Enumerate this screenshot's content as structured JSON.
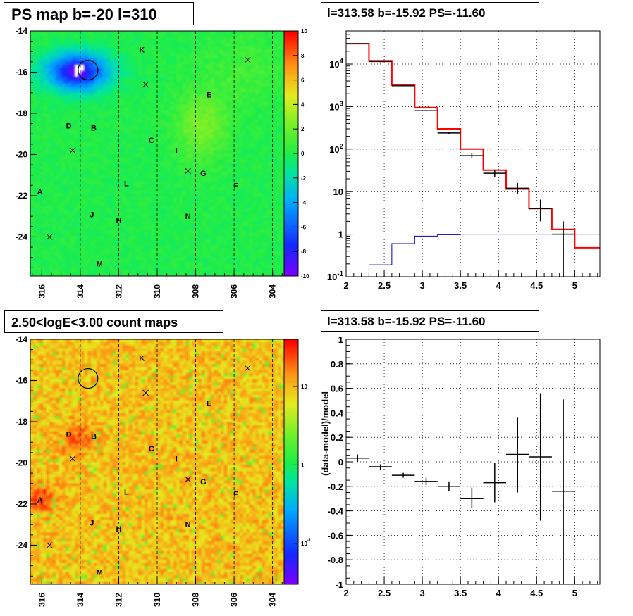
{
  "panels": {
    "tl_title": "PS map b=-20 l=310",
    "tr_title": "l=313.58 b=-15.92 PS=-11.60",
    "bl_title": "2.50<logE<3.00 count maps",
    "br_title": "l=313.58 b=-15.92 PS=-11.60"
  },
  "colors": {
    "model": "#ff0000",
    "background_model": "#0000cc",
    "data": "#000000",
    "map_green": "#22ee44",
    "map_orange": "#f4a020"
  },
  "chart_data": [
    {
      "type": "heatmap",
      "title": "PS map b=-20 l=310",
      "x_ticks": [
        "316",
        "314",
        "312",
        "310",
        "308",
        "306",
        "304"
      ],
      "y_ticks": [
        "-14",
        "-16",
        "-18",
        "-20",
        "-22",
        "-24"
      ],
      "xlim": [
        316.6,
        303.4
      ],
      "ylim": [
        -25.9,
        -14
      ],
      "colorbar_ticks": [
        "10",
        "8",
        "6",
        "4",
        "2",
        "0",
        "-2",
        "-4",
        "-6",
        "-8",
        "-10"
      ],
      "zlim": [
        -10,
        10
      ],
      "sources": [
        {
          "label": "K",
          "l": 310.8,
          "b": -14.9
        },
        {
          "label": "E",
          "l": 307.3,
          "b": -17.1
        },
        {
          "label": "D",
          "l": 314.6,
          "b": -18.6
        },
        {
          "label": "B",
          "l": 313.3,
          "b": -18.7
        },
        {
          "label": "C",
          "l": 310.3,
          "b": -19.3
        },
        {
          "label": "I",
          "l": 309.0,
          "b": -19.8
        },
        {
          "label": "G",
          "l": 307.6,
          "b": -20.9
        },
        {
          "label": "L",
          "l": 311.6,
          "b": -21.4
        },
        {
          "label": "F",
          "l": 305.9,
          "b": -21.5
        },
        {
          "label": "A",
          "l": 316.1,
          "b": -21.8
        },
        {
          "label": "J",
          "l": 313.4,
          "b": -22.9
        },
        {
          "label": "H",
          "l": 312.0,
          "b": -23.2
        },
        {
          "label": "N",
          "l": 308.4,
          "b": -23.0
        },
        {
          "label": "M",
          "l": 313.0,
          "b": -25.3
        }
      ],
      "crosses": [
        {
          "l": 305.3,
          "b": -15.4
        },
        {
          "l": 310.6,
          "b": -16.6
        },
        {
          "l": 314.4,
          "b": -19.8
        },
        {
          "l": 308.4,
          "b": -20.8
        },
        {
          "l": 315.6,
          "b": -24.0
        }
      ],
      "circle": {
        "l": 313.6,
        "b": -15.9
      }
    },
    {
      "type": "line",
      "title": "l=313.58 b=-15.92 PS=-11.60",
      "xlim": [
        2,
        5.33
      ],
      "ylog": true,
      "ylim": [
        0.1,
        60000
      ],
      "x_ticks": [
        "2",
        "2.5",
        "3",
        "3.5",
        "4",
        "4.5",
        "5"
      ],
      "y_ticks": [
        "10^-1",
        "1",
        "10",
        "10^2",
        "10^3",
        "10^4"
      ],
      "bin_edges": [
        2.0,
        2.3,
        2.6,
        2.9,
        3.2,
        3.5,
        3.8,
        4.1,
        4.4,
        4.7,
        5.0,
        5.33
      ],
      "series": [
        {
          "values": [
            30000,
            12000,
            3200,
            950,
            300,
            100,
            32,
            11.5,
            4,
            1.3,
            0.48
          ]
        },
        {
          "values": [
            0.1,
            0.19,
            0.6,
            0.9,
            0.97,
            1.0,
            1.0,
            1.0,
            1.0,
            1.0,
            1.0
          ]
        }
      ],
      "points": [
        {
          "x": 2.15,
          "y": 30000,
          "xerr": 0.15,
          "ylo": 29000,
          "yhi": 31000
        },
        {
          "x": 2.45,
          "y": 11500,
          "xerr": 0.15,
          "ylo": 11000,
          "yhi": 12000
        },
        {
          "x": 2.75,
          "y": 3100,
          "xerr": 0.15,
          "ylo": 3000,
          "yhi": 3200
        },
        {
          "x": 3.05,
          "y": 800,
          "xerr": 0.15,
          "ylo": 770,
          "yhi": 830
        },
        {
          "x": 3.35,
          "y": 240,
          "xerr": 0.15,
          "ylo": 225,
          "yhi": 255
        },
        {
          "x": 3.65,
          "y": 70,
          "xerr": 0.15,
          "ylo": 62,
          "yhi": 79
        },
        {
          "x": 3.95,
          "y": 27,
          "xerr": 0.15,
          "ylo": 22,
          "yhi": 33
        },
        {
          "x": 4.25,
          "y": 12,
          "xerr": 0.15,
          "ylo": 9,
          "yhi": 16
        },
        {
          "x": 4.55,
          "y": 4,
          "xerr": 0.15,
          "ylo": 2,
          "yhi": 6.5
        },
        {
          "x": 4.85,
          "y": 1.0,
          "xerr": 0.15,
          "ylo": 0.1,
          "yhi": 2.0
        }
      ]
    },
    {
      "type": "heatmap",
      "title": "2.50<logE<3.00 count maps",
      "x_ticks": [
        "316",
        "314",
        "312",
        "310",
        "308",
        "306",
        "304"
      ],
      "y_ticks": [
        "-14",
        "-16",
        "-18",
        "-20",
        "-22",
        "-24"
      ],
      "xlim": [
        316.6,
        303.4
      ],
      "ylim": [
        -25.9,
        -14
      ],
      "colorbar_ticks": [
        "10",
        "1",
        "10^-1"
      ],
      "zlog": true,
      "zlim": [
        0.03,
        40
      ]
    },
    {
      "type": "scatter",
      "title": "l=313.58 b=-15.92 PS=-11.60",
      "xlim": [
        2,
        5.33
      ],
      "ylim": [
        -1,
        1
      ],
      "ylabel": "(data-model)/model",
      "x_ticks": [
        "2",
        "2.5",
        "3",
        "3.5",
        "4",
        "4.5",
        "5"
      ],
      "y_ticks": [
        "1",
        "0.8",
        "0.6",
        "0.4",
        "0.2",
        "0",
        "-0.2",
        "-0.4",
        "-0.6",
        "-0.8",
        "-1"
      ],
      "points": [
        {
          "x": 2.15,
          "y": 0.03,
          "xerr": 0.15,
          "ylo": 0.0,
          "yhi": 0.06
        },
        {
          "x": 2.45,
          "y": -0.04,
          "xerr": 0.15,
          "ylo": -0.07,
          "yhi": -0.02
        },
        {
          "x": 2.75,
          "y": -0.11,
          "xerr": 0.15,
          "ylo": -0.13,
          "yhi": -0.09
        },
        {
          "x": 3.05,
          "y": -0.16,
          "xerr": 0.15,
          "ylo": -0.19,
          "yhi": -0.13
        },
        {
          "x": 3.35,
          "y": -0.2,
          "xerr": 0.15,
          "ylo": -0.24,
          "yhi": -0.16
        },
        {
          "x": 3.65,
          "y": -0.3,
          "xerr": 0.15,
          "ylo": -0.38,
          "yhi": -0.21
        },
        {
          "x": 3.95,
          "y": -0.17,
          "xerr": 0.15,
          "ylo": -0.33,
          "yhi": -0.01
        },
        {
          "x": 4.25,
          "y": 0.06,
          "xerr": 0.15,
          "ylo": -0.25,
          "yhi": 0.36
        },
        {
          "x": 4.55,
          "y": 0.04,
          "xerr": 0.15,
          "ylo": -0.48,
          "yhi": 0.56
        },
        {
          "x": 4.85,
          "y": -0.24,
          "xerr": 0.15,
          "ylo": -1.0,
          "yhi": 0.51
        }
      ]
    }
  ]
}
